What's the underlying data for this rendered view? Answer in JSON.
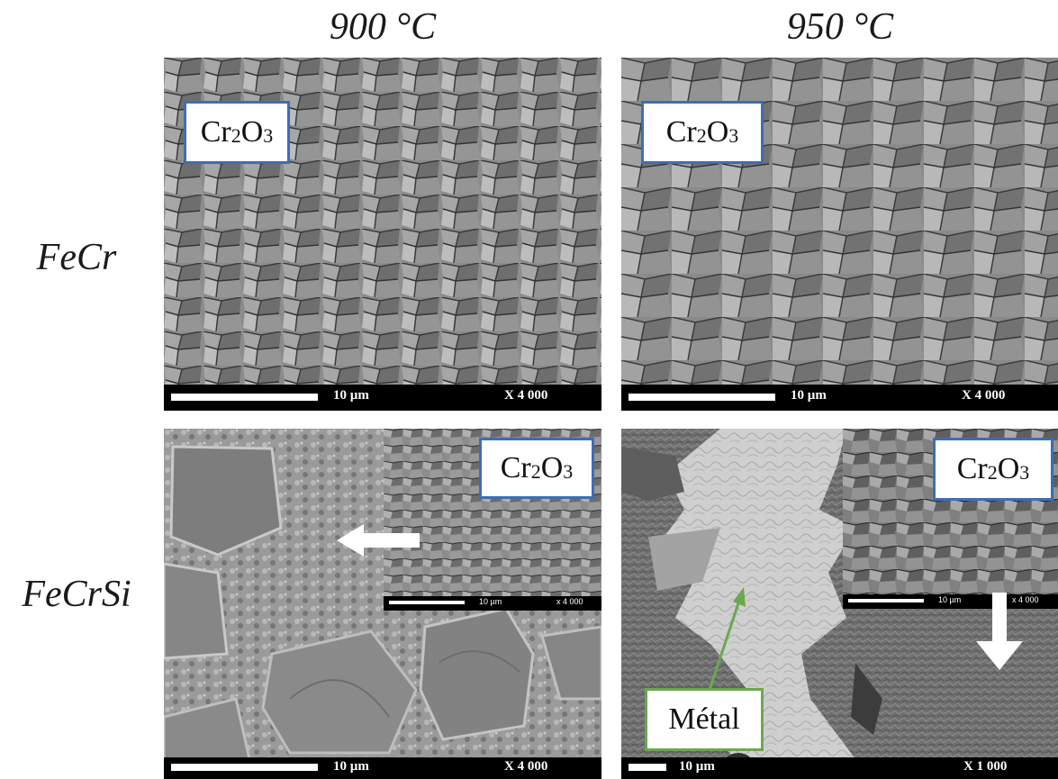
{
  "columns": [
    "900 °C",
    "950 °C"
  ],
  "rows": [
    "FeCr",
    "FeCrSi"
  ],
  "oxide_label": {
    "main": "Cr",
    "sub1": "2",
    "mid": "O",
    "sub2": "3"
  },
  "metal_label": "Métal",
  "panels": {
    "fecr_900": {
      "scale": "10 µm",
      "mag": "X 4 000"
    },
    "fecr_950": {
      "scale": "10 µm",
      "mag": "X 4 000"
    },
    "fecrsi_900": {
      "scale": "10 µm",
      "mag": "X 4 000",
      "inset_scale": "10 µm",
      "inset_mag": "x 4 000"
    },
    "fecrsi_950": {
      "scale": "10 µm",
      "mag": "X 1 000",
      "inset_scale": "10 µm",
      "inset_mag": "x 4 000"
    }
  },
  "colors": {
    "label_border": "#3e6db3",
    "metal_border": "#6aa84f",
    "arrow_green": "#6aa84f"
  }
}
